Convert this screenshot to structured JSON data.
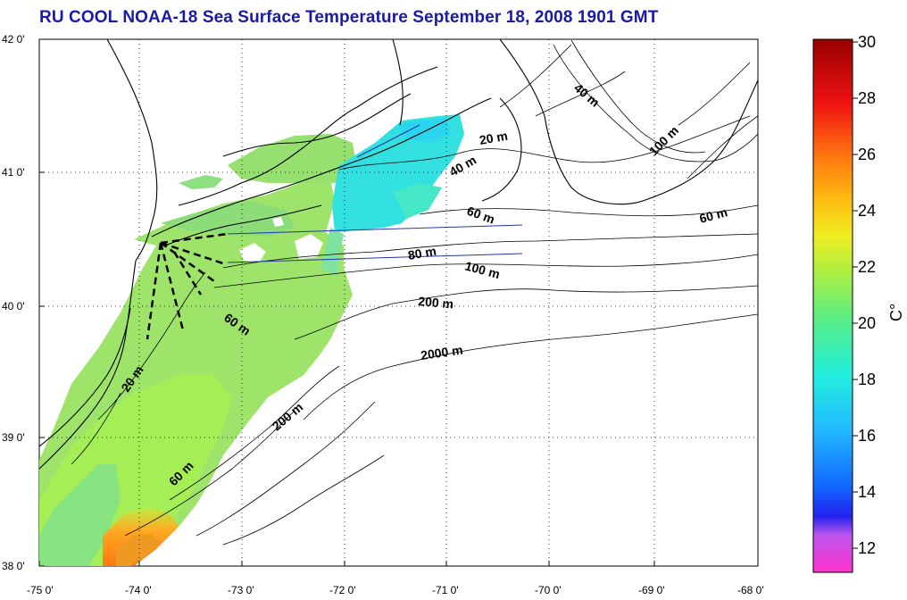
{
  "title": "RU COOL  NOAA-18 Sea Surface Temperature September 18, 2008 1901 GMT",
  "map": {
    "lon_ticks": [
      "-75 0'",
      "-74 0'",
      "-73 0'",
      "-72 0'",
      "-71 0'",
      "-70 0'",
      "-69 0'",
      "-68 0'"
    ],
    "lat_ticks": [
      "42 0'",
      "41 0'",
      "40 0'",
      "39 0'",
      "38 0'"
    ],
    "lon_range": [
      -75,
      -68
    ],
    "lat_range": [
      38,
      42
    ],
    "grid": true,
    "contour_labels": [
      "20 m",
      "40 m",
      "60 m",
      "80 m",
      "100 m",
      "200 m",
      "2000 m",
      "40 m",
      "100 m",
      "60 m",
      "60 m",
      "20 m",
      "200 m",
      "60 m"
    ]
  },
  "colorbar": {
    "unit_label": "C°",
    "ticks": [
      "30",
      "28",
      "26",
      "24",
      "22",
      "20",
      "18",
      "16",
      "14",
      "12"
    ],
    "range": [
      11,
      30
    ],
    "colors": [
      "#ff33cc",
      "#cc55ee",
      "#2222ee",
      "#1188ff",
      "#22ccee",
      "#33eedd",
      "#66ee88",
      "#aaee44",
      "#eeee22",
      "#ffaa11",
      "#ff5511",
      "#ee1111",
      "#990000"
    ]
  }
}
